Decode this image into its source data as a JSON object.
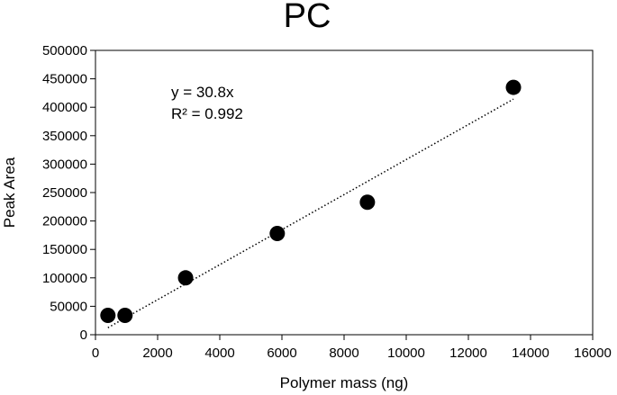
{
  "chart_data": {
    "type": "scatter",
    "title": "PC",
    "xlabel": "Polymer mass (ng)",
    "ylabel": "Peak Area",
    "xlim": [
      0,
      16000
    ],
    "ylim": [
      0,
      500000
    ],
    "x_ticks": [
      0,
      2000,
      4000,
      6000,
      8000,
      10000,
      12000,
      14000,
      16000
    ],
    "y_ticks": [
      0,
      50000,
      100000,
      150000,
      200000,
      250000,
      300000,
      350000,
      400000,
      450000,
      500000
    ],
    "series": [
      {
        "points": [
          {
            "x": 400,
            "y": 34000
          },
          {
            "x": 950,
            "y": 34000
          },
          {
            "x": 2900,
            "y": 100000
          },
          {
            "x": 5850,
            "y": 178000
          },
          {
            "x": 8750,
            "y": 233000
          },
          {
            "x": 13450,
            "y": 435000
          }
        ]
      }
    ],
    "trendline": {
      "style": "dotted",
      "slope": 30.8,
      "intercept": 0,
      "x_range": [
        400,
        13450
      ]
    },
    "annotations": [
      "y = 30.8x",
      "R² = 0.992"
    ],
    "grid": false,
    "marker_color": "#000000"
  }
}
